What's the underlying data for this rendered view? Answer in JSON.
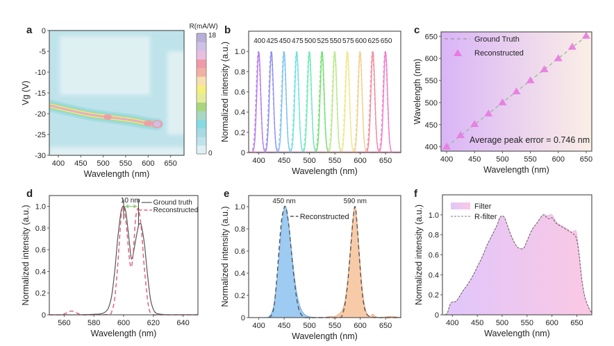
{
  "chart_data": [
    {
      "id": "a",
      "panel_label": "a",
      "type": "heatmap",
      "xlabel": "Wavelength (nm)",
      "ylabel": "Vg (V)",
      "xlim": [
        380,
        680
      ],
      "ylim": [
        -30,
        0
      ],
      "xticks": [
        400,
        450,
        500,
        550,
        600,
        650
      ],
      "yticks": [
        0,
        -5,
        -10,
        -15,
        -20,
        -25,
        -30
      ],
      "colorbar": {
        "title": "R(mA/W)",
        "min": 0,
        "max": 18,
        "colors": [
          "#dff0f3",
          "#bfe3ea",
          "#a6dbe3",
          "#86dbe3",
          "#a8d8c4",
          "#a8d67c",
          "#e4ec9a",
          "#f4ef7e",
          "#f6e0b0",
          "#f2b0a4",
          "#ef9aa6",
          "#e8bfe0",
          "#cfc0e6",
          "#b8aed8"
        ]
      },
      "ridge": [
        {
          "x": 380,
          "y": -18.0,
          "r": 12
        },
        {
          "x": 460,
          "y": -20.0,
          "r": 9
        },
        {
          "x": 510,
          "y": -20.8,
          "r": 13
        },
        {
          "x": 560,
          "y": -21.5,
          "r": 11
        },
        {
          "x": 600,
          "y": -22.3,
          "r": 14
        },
        {
          "x": 620,
          "y": -22.5,
          "r": 18
        }
      ],
      "grid": false
    },
    {
      "id": "b",
      "panel_label": "b",
      "type": "line",
      "xlabel": "Wavelength (nm)",
      "ylabel": "Normalized intensity (a.u.)",
      "xlim": [
        380,
        680
      ],
      "ylim": [
        0,
        1.2
      ],
      "xticks": [
        400,
        450,
        500,
        550,
        600,
        650
      ],
      "yticks": [
        0,
        0.2,
        0.4,
        0.6,
        0.8,
        1.0
      ],
      "ytick_labels": [
        "0",
        "0.2",
        "0.4",
        "0.6",
        "0.8",
        "1.0"
      ],
      "peak_labels": [
        "400",
        "425",
        "450",
        "475",
        "500",
        "525",
        "550",
        "575",
        "600",
        "625",
        "650"
      ],
      "series": [
        {
          "name": "400",
          "center": 400,
          "fwhm": 9,
          "color": "#b57af0"
        },
        {
          "name": "425",
          "center": 425,
          "fwhm": 9,
          "color": "#8f8ff0"
        },
        {
          "name": "450",
          "center": 450,
          "fwhm": 9,
          "color": "#7ec0f0"
        },
        {
          "name": "475",
          "center": 475,
          "fwhm": 9,
          "color": "#6fe0e6"
        },
        {
          "name": "500",
          "center": 500,
          "fwhm": 9,
          "color": "#6fe8b8"
        },
        {
          "name": "525",
          "center": 525,
          "fwhm": 9,
          "color": "#6fe06f"
        },
        {
          "name": "550",
          "center": 550,
          "fwhm": 9,
          "color": "#b8e88a"
        },
        {
          "name": "575",
          "center": 575,
          "fwhm": 9,
          "color": "#f0e68a"
        },
        {
          "name": "600",
          "center": 600,
          "fwhm": 9,
          "color": "#f0d090"
        },
        {
          "name": "625",
          "center": 625,
          "fwhm": 9,
          "color": "#f08a9a"
        },
        {
          "name": "650",
          "center": 650,
          "fwhm": 9,
          "color": "#f07ac8"
        }
      ],
      "grid": false
    },
    {
      "id": "c",
      "panel_label": "c",
      "type": "scatter",
      "xlabel": "Wavelength (nm)",
      "ylabel": "Wavelength (nm)",
      "xlim": [
        390,
        660
      ],
      "ylim": [
        390,
        660
      ],
      "xticks": [
        400,
        450,
        500,
        550,
        600,
        650
      ],
      "yticks": [
        400,
        450,
        500,
        550,
        600,
        650
      ],
      "legend": [
        "Ground Truth",
        "Reconstructed"
      ],
      "legend_position": "top-left",
      "annotation": "Average peak error = 0.746 nm",
      "ground_truth": {
        "x": [
          400,
          650
        ],
        "y": [
          400,
          650
        ],
        "color": "#8fbf8f"
      },
      "reconstructed": {
        "x": [
          400,
          425,
          450,
          475,
          500,
          525,
          550,
          575,
          600,
          625,
          650
        ],
        "y": [
          400,
          426,
          451,
          475,
          500,
          525,
          550,
          575,
          600,
          626,
          651
        ],
        "color": "#e87ae0"
      },
      "background_gradient": [
        "#d9b4f7",
        "#fbefe6"
      ],
      "grid": false
    },
    {
      "id": "d",
      "panel_label": "d",
      "type": "line",
      "xlabel": "Wavelength (nm)",
      "ylabel": "Normalized intensity (a.u.)",
      "xlim": [
        550,
        650
      ],
      "ylim": [
        0,
        1.1
      ],
      "xticks": [
        560,
        580,
        600,
        620,
        640
      ],
      "yticks": [
        0,
        0.2,
        0.4,
        0.6,
        0.8,
        1.0
      ],
      "ytick_labels": [
        "0",
        "0.2",
        "0.4",
        "0.6",
        "0.8",
        "1.0"
      ],
      "legend": [
        "Ground truth",
        "Reconstructed"
      ],
      "legend_position": "top-right",
      "annotation": "10 nm",
      "series": [
        {
          "name": "Ground truth",
          "color": "#555555",
          "dash": false,
          "x": [
            550,
            560,
            570,
            580,
            585,
            588,
            590,
            592,
            594,
            596,
            598,
            599,
            600,
            601,
            602,
            604,
            605,
            606,
            608,
            610,
            611,
            612,
            614,
            616,
            618,
            620,
            622,
            625,
            630,
            640,
            650
          ],
          "y": [
            0,
            0,
            0,
            0.005,
            0.01,
            0.03,
            0.07,
            0.18,
            0.4,
            0.7,
            0.93,
            0.99,
            1.0,
            0.98,
            0.9,
            0.65,
            0.53,
            0.53,
            0.68,
            0.82,
            0.84,
            0.82,
            0.65,
            0.38,
            0.15,
            0.05,
            0.015,
            0.005,
            0,
            0,
            0
          ]
        },
        {
          "name": "Reconstructed",
          "color": "#e06080",
          "dash": true,
          "x": [
            550,
            558,
            562,
            565,
            568,
            572,
            580,
            590,
            592,
            594,
            596,
            598,
            599,
            600,
            601,
            602,
            603,
            604,
            605,
            606,
            607,
            608,
            609,
            610,
            611,
            612,
            613,
            614,
            615,
            616,
            617,
            618,
            620,
            625,
            630,
            640,
            650
          ],
          "y": [
            0,
            0,
            0.02,
            0.035,
            0.02,
            0,
            0,
            0.005,
            0.03,
            0.15,
            0.45,
            0.85,
            0.98,
            1.0,
            0.92,
            0.8,
            0.65,
            0.5,
            0.44,
            0.5,
            0.68,
            0.88,
            0.96,
            0.98,
            0.9,
            0.78,
            0.6,
            0.42,
            0.28,
            0.15,
            0.06,
            0.02,
            0,
            0,
            0,
            0,
            0
          ]
        }
      ],
      "grid": false
    },
    {
      "id": "e",
      "panel_label": "e",
      "type": "area",
      "xlabel": "Wavelength (nm)",
      "ylabel": "Normalized intensity (a.u.)",
      "xlim": [
        380,
        680
      ],
      "ylim": [
        0,
        1.1
      ],
      "xticks": [
        400,
        450,
        500,
        550,
        600,
        650
      ],
      "yticks": [
        0,
        0.2,
        0.4,
        0.6,
        0.8,
        1.0
      ],
      "ytick_labels": [
        "0",
        "0.2",
        "0.4",
        "0.6",
        "0.8",
        "1.0"
      ],
      "peak_labels": [
        "450 nm",
        "590 nm"
      ],
      "legend": [
        "Reconstructed"
      ],
      "series": [
        {
          "name": "450 nm",
          "type": "fill",
          "color": "#9ecbf2",
          "stroke": "#7ab4ea",
          "x": [
            400,
            415,
            420,
            425,
            430,
            435,
            440,
            445,
            450,
            453,
            456,
            460,
            465,
            470,
            475,
            480,
            485,
            490,
            495,
            500,
            510,
            520
          ],
          "y": [
            0,
            0,
            0.01,
            0.04,
            0.12,
            0.3,
            0.55,
            0.82,
            0.98,
            1.0,
            0.95,
            0.8,
            0.58,
            0.38,
            0.22,
            0.12,
            0.06,
            0.03,
            0.015,
            0.008,
            0,
            0
          ]
        },
        {
          "name": "590 nm",
          "type": "fill",
          "color": "#f8cba8",
          "stroke": "#eeaa80",
          "x": [
            530,
            540,
            550,
            560,
            565,
            570,
            575,
            580,
            585,
            588,
            590,
            592,
            595,
            600,
            605,
            610,
            615,
            620,
            625,
            630,
            640,
            660,
            680
          ],
          "y": [
            0,
            0.01,
            0.01,
            0.04,
            0.07,
            0.15,
            0.32,
            0.58,
            0.85,
            0.98,
            1.0,
            0.95,
            0.78,
            0.48,
            0.22,
            0.08,
            0.02,
            0.01,
            0.03,
            0.01,
            0,
            0.01,
            0
          ]
        },
        {
          "name": "Reconstructed",
          "type": "dashed",
          "color": "#555555",
          "x": [
            420,
            425,
            430,
            435,
            440,
            445,
            450,
            452,
            455,
            460,
            465,
            470,
            475,
            480,
            485,
            490,
            495,
            500,
            520,
            540,
            560,
            565,
            570,
            575,
            580,
            585,
            588,
            590,
            592,
            595,
            600,
            605,
            610,
            615,
            620,
            630,
            650,
            680
          ],
          "y": [
            0,
            0.02,
            0.1,
            0.32,
            0.62,
            0.88,
            0.99,
            1.0,
            0.96,
            0.8,
            0.56,
            0.34,
            0.16,
            0.06,
            0.02,
            0,
            0,
            0,
            0,
            0,
            0,
            0.03,
            0.12,
            0.3,
            0.56,
            0.84,
            0.97,
            1.0,
            0.94,
            0.76,
            0.44,
            0.18,
            0.06,
            0.02,
            0.01,
            0,
            0,
            0
          ]
        }
      ],
      "grid": false
    },
    {
      "id": "f",
      "panel_label": "f",
      "type": "area",
      "xlabel": "Wavelength (nm)",
      "ylabel": "Normalized intensity (a.u.)",
      "xlim": [
        380,
        680
      ],
      "ylim": [
        0,
        1.2
      ],
      "xticks": [
        400,
        450,
        500,
        550,
        600,
        650
      ],
      "yticks": [
        0,
        0.2,
        0.4,
        0.6,
        0.8,
        1.0
      ],
      "ytick_labels": [
        "0",
        "0.2",
        "0.4",
        "0.6",
        "0.8",
        "1.0"
      ],
      "legend": [
        "Filter",
        "R-filter"
      ],
      "legend_position": "top-left",
      "fill_gradient": [
        "#e0c6fb",
        "#fbc8e4"
      ],
      "series": [
        {
          "name": "Filter",
          "type": "fill",
          "x": [
            385,
            390,
            395,
            400,
            405,
            410,
            420,
            430,
            440,
            450,
            460,
            470,
            480,
            490,
            495,
            500,
            505,
            510,
            520,
            530,
            540,
            545,
            550,
            560,
            570,
            580,
            585,
            590,
            595,
            600,
            605,
            610,
            620,
            630,
            640,
            645,
            648,
            650,
            655,
            660,
            665,
            670,
            675,
            680
          ],
          "y": [
            0,
            0.02,
            0.1,
            0.13,
            0.13,
            0.15,
            0.23,
            0.3,
            0.38,
            0.48,
            0.58,
            0.7,
            0.8,
            0.9,
            0.97,
            0.99,
            0.97,
            0.9,
            0.77,
            0.68,
            0.66,
            0.68,
            0.74,
            0.85,
            0.92,
            0.99,
            1.0,
            0.99,
            1.0,
            1.0,
            0.96,
            0.92,
            0.89,
            0.86,
            0.83,
            0.84,
            0.84,
            0.8,
            0.6,
            0.35,
            0.2,
            0.12,
            0.06,
            0.02
          ]
        },
        {
          "name": "R-filter",
          "type": "dashed",
          "color": "#666666",
          "x": [
            385,
            390,
            395,
            400,
            405,
            410,
            420,
            430,
            440,
            450,
            460,
            470,
            480,
            490,
            495,
            500,
            505,
            510,
            520,
            530,
            540,
            545,
            550,
            560,
            570,
            580,
            585,
            590,
            595,
            600,
            605,
            610,
            620,
            630,
            640,
            645,
            650,
            655,
            660,
            665,
            670,
            675,
            680
          ],
          "y": [
            0,
            0.02,
            0.1,
            0.13,
            0.13,
            0.15,
            0.23,
            0.3,
            0.38,
            0.48,
            0.58,
            0.7,
            0.8,
            0.9,
            0.97,
            0.99,
            0.97,
            0.9,
            0.77,
            0.68,
            0.66,
            0.68,
            0.74,
            0.85,
            0.92,
            0.99,
            1.0,
            0.97,
            0.96,
            0.97,
            0.94,
            0.91,
            0.88,
            0.85,
            0.82,
            0.8,
            0.75,
            0.58,
            0.35,
            0.2,
            0.12,
            0.06,
            0.02
          ]
        }
      ],
      "grid": false
    }
  ]
}
